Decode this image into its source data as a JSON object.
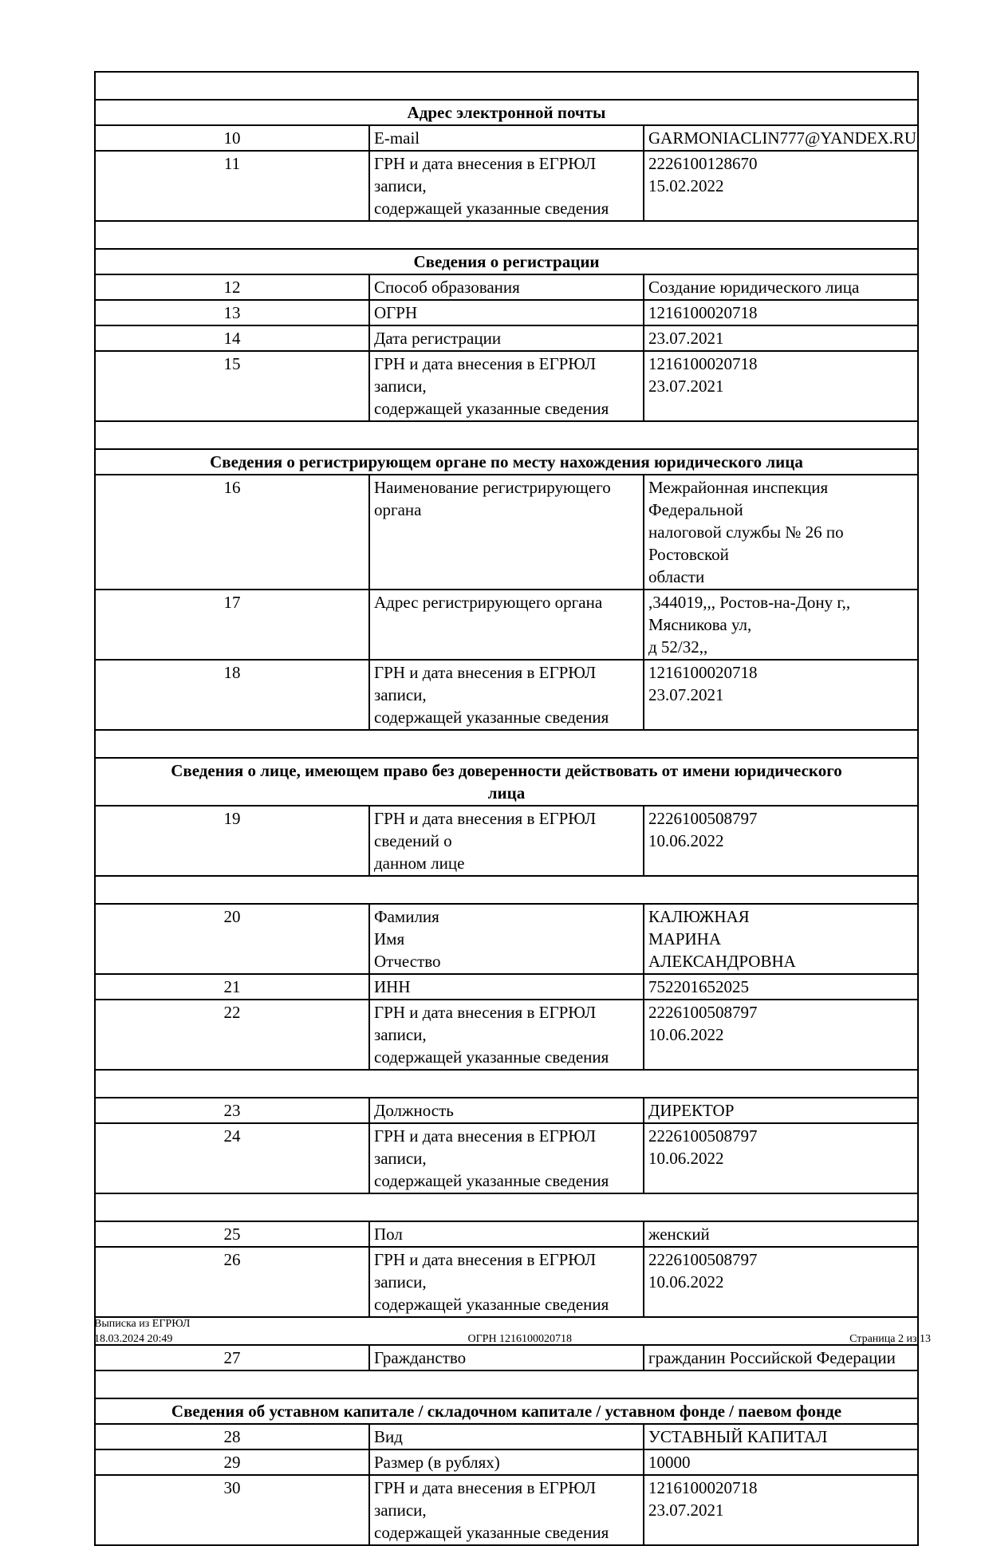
{
  "page": {
    "footer": {
      "doc_type": "Выписка из ЕГРЮЛ",
      "datetime": "18.03.2024 20:49",
      "ogrn": "ОГРН 1216100020718",
      "page_number": "Страница 2 из 13"
    },
    "rows": [
      {
        "type": "empty"
      },
      {
        "type": "section",
        "title_lines": [
          "Адрес электронной почты"
        ]
      },
      {
        "type": "item",
        "num": "10",
        "label_lines": [
          "E-mail"
        ],
        "value_lines": [
          "GARMONIACLIN777@YANDEX.RU"
        ]
      },
      {
        "type": "item",
        "num": "11",
        "label_lines": [
          "ГРН и дата внесения в ЕГРЮЛ записи,",
          "содержащей указанные сведения"
        ],
        "value_lines": [
          "2226100128670",
          "15.02.2022"
        ]
      },
      {
        "type": "empty"
      },
      {
        "type": "section",
        "title_lines": [
          "Сведения о регистрации"
        ]
      },
      {
        "type": "item",
        "num": "12",
        "label_lines": [
          "Способ образования"
        ],
        "value_lines": [
          "Создание юридического лица"
        ]
      },
      {
        "type": "item",
        "num": "13",
        "label_lines": [
          "ОГРН"
        ],
        "value_lines": [
          "1216100020718"
        ]
      },
      {
        "type": "item",
        "num": "14",
        "label_lines": [
          "Дата регистрации"
        ],
        "value_lines": [
          "23.07.2021"
        ]
      },
      {
        "type": "item",
        "num": "15",
        "label_lines": [
          "ГРН и дата внесения в ЕГРЮЛ записи,",
          "содержащей указанные сведения"
        ],
        "value_lines": [
          "1216100020718",
          "23.07.2021"
        ]
      },
      {
        "type": "empty"
      },
      {
        "type": "section",
        "title_lines": [
          "Сведения о регистрирующем органе по месту нахождения юридического лица"
        ]
      },
      {
        "type": "item",
        "num": "16",
        "label_lines": [
          "Наименование регистрирующего органа"
        ],
        "value_lines": [
          "Межрайонная инспекция Федеральной",
          "налоговой службы № 26 по Ростовской",
          "области"
        ]
      },
      {
        "type": "item",
        "num": "17",
        "label_lines": [
          "Адрес регистрирующего органа"
        ],
        "value_lines": [
          ",344019,,, Ростов-на-Дону г,, Мясникова ул,",
          "д 52/32,,"
        ]
      },
      {
        "type": "item",
        "num": "18",
        "label_lines": [
          "ГРН и дата внесения в ЕГРЮЛ записи,",
          "содержащей указанные сведения"
        ],
        "value_lines": [
          "1216100020718",
          "23.07.2021"
        ]
      },
      {
        "type": "empty"
      },
      {
        "type": "section",
        "title_lines": [
          "Сведения о лице, имеющем право без доверенности действовать от имени юридического",
          "лица"
        ]
      },
      {
        "type": "item",
        "num": "19",
        "label_lines": [
          "ГРН и дата внесения в ЕГРЮЛ сведений о",
          "данном лице"
        ],
        "value_lines": [
          "2226100508797",
          "10.06.2022"
        ]
      },
      {
        "type": "empty"
      },
      {
        "type": "item",
        "num": "20",
        "label_lines": [
          "Фамилия",
          "Имя",
          "Отчество"
        ],
        "value_lines": [
          "КАЛЮЖНАЯ",
          "МАРИНА",
          "АЛЕКСАНДРОВНА"
        ]
      },
      {
        "type": "item",
        "num": "21",
        "label_lines": [
          "ИНН"
        ],
        "value_lines": [
          "752201652025"
        ]
      },
      {
        "type": "item",
        "num": "22",
        "label_lines": [
          "ГРН и дата внесения в ЕГРЮЛ записи,",
          "содержащей указанные сведения"
        ],
        "value_lines": [
          "2226100508797",
          "10.06.2022"
        ]
      },
      {
        "type": "empty"
      },
      {
        "type": "item",
        "num": "23",
        "label_lines": [
          "Должность"
        ],
        "value_lines": [
          "ДИРЕКТОР"
        ]
      },
      {
        "type": "item",
        "num": "24",
        "label_lines": [
          "ГРН и дата внесения в ЕГРЮЛ записи,",
          "содержащей указанные сведения"
        ],
        "value_lines": [
          "2226100508797",
          "10.06.2022"
        ]
      },
      {
        "type": "empty"
      },
      {
        "type": "item",
        "num": "25",
        "label_lines": [
          "Пол"
        ],
        "value_lines": [
          "женский"
        ]
      },
      {
        "type": "item",
        "num": "26",
        "label_lines": [
          "ГРН и дата внесения в ЕГРЮЛ записи,",
          "содержащей указанные сведения"
        ],
        "value_lines": [
          "2226100508797",
          "10.06.2022"
        ]
      },
      {
        "type": "empty"
      },
      {
        "type": "item",
        "num": "27",
        "label_lines": [
          "Гражданство"
        ],
        "value_lines": [
          "гражданин Российской Федерации"
        ]
      },
      {
        "type": "empty"
      },
      {
        "type": "section",
        "title_lines": [
          "Сведения об уставном капитале / складочном капитале / уставном фонде / паевом фонде"
        ]
      },
      {
        "type": "item",
        "num": "28",
        "label_lines": [
          "Вид"
        ],
        "value_lines": [
          "УСТАВНЫЙ КАПИТАЛ"
        ]
      },
      {
        "type": "item",
        "num": "29",
        "label_lines": [
          "Размер (в рублях)"
        ],
        "value_lines": [
          "10000"
        ]
      },
      {
        "type": "item",
        "num": "30",
        "label_lines": [
          "ГРН и дата внесения в ЕГРЮЛ записи,",
          "содержащей указанные сведения"
        ],
        "value_lines": [
          "1216100020718",
          "23.07.2021"
        ]
      }
    ]
  }
}
